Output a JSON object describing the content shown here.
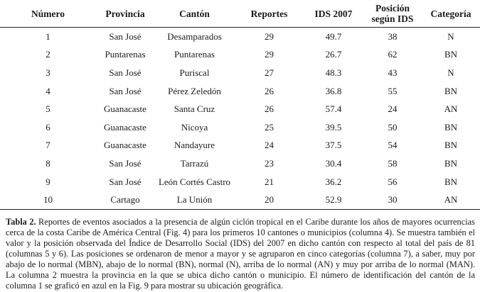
{
  "table": {
    "headers": [
      "Número",
      "Provincia",
      "Cantón",
      "Reportes",
      "IDS 2007",
      "Posición según IDS",
      "Categoría"
    ],
    "rows": [
      [
        "1",
        "San José",
        "Desamparados",
        "29",
        "49.7",
        "38",
        "N"
      ],
      [
        "2",
        "Puntarenas",
        "Puntarenas",
        "29",
        "26.7",
        "62",
        "BN"
      ],
      [
        "3",
        "San José",
        "Puriscal",
        "27",
        "48.3",
        "43",
        "N"
      ],
      [
        "4",
        "San José",
        "Pérez Zeledón",
        "26",
        "36.8",
        "55",
        "BN"
      ],
      [
        "5",
        "Guanacaste",
        "Santa Cruz",
        "26",
        "57.4",
        "24",
        "AN"
      ],
      [
        "6",
        "Guanacaste",
        "Nicoya",
        "25",
        "39.5",
        "50",
        "BN"
      ],
      [
        "7",
        "Guanacaste",
        "Nandayure",
        "24",
        "37.5",
        "54",
        "BN"
      ],
      [
        "8",
        "San José",
        "Tarrazú",
        "23",
        "30.4",
        "58",
        "BN"
      ],
      [
        "9",
        "San José",
        "León Cortés Castro",
        "21",
        "36.2",
        "56",
        "BN"
      ],
      [
        "10",
        "Cartago",
        "La Unión",
        "20",
        "52.9",
        "30",
        "AN"
      ]
    ]
  },
  "caption": {
    "label": "Tabla 2.",
    "text": "Reportes de eventos asociados a la presencia de algún ciclón tropical en el Caribe durante los años de mayores ocurrencias cerca de la costa Caribe de América Central (Fig. 4) para los primeros 10 cantones o municipios (columna 4). Se muestra también el valor y la posición observada del Índice de Desarrollo Social (IDS) del 2007 en dicho cantón con respecto al total del país de 81 (columnas 5 y 6). Las posiciones se ordenaron de menor a mayor y se agruparon en cinco categorías (columna 7), a saber, muy por abajo de lo normal (MBN), abajo de lo normal (BN), normal (N), arriba de lo normal (AN) y muy por arriba de lo normal (MAN). La columna 2 muestra la provincia en la que se ubica dicho cantón o municipio. El número de identificación del cantón de la columna 1 se graficó en azul en la Fig. 9 para mostrar su ubicación geográfica."
  }
}
